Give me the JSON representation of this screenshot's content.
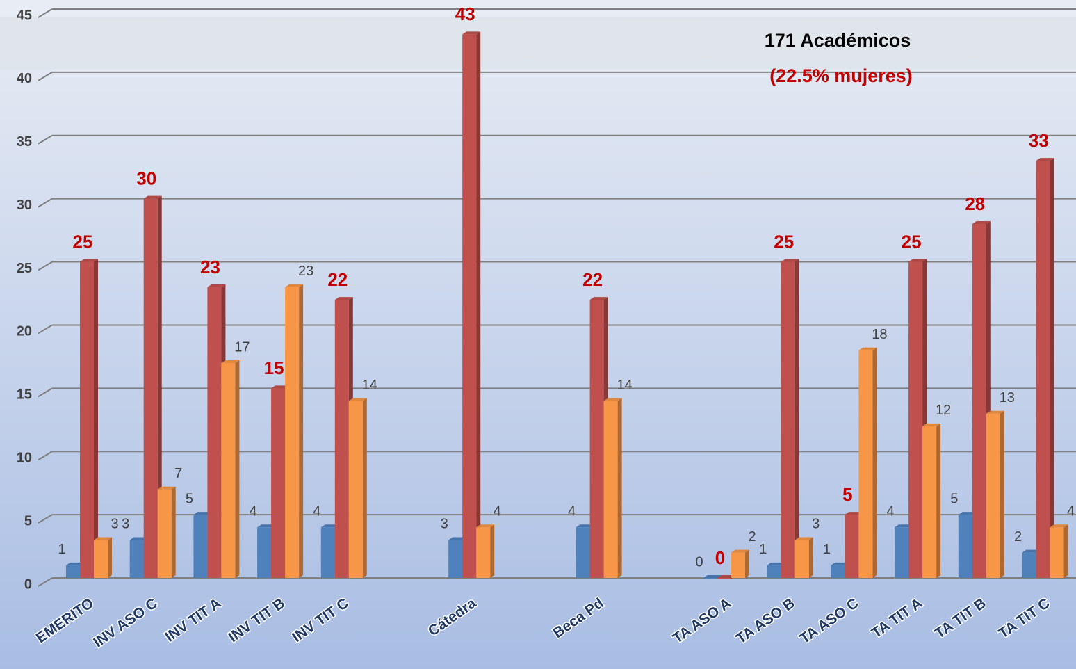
{
  "chart_data": {
    "type": "bar",
    "annotations": [
      "171 Académicos",
      "(22.5% mujeres)"
    ],
    "categories": [
      "EMERITO",
      "INV ASO C",
      "INV TIT A",
      "INV TIT B",
      "INV TIT C",
      null,
      "Cátedra",
      null,
      "Beca Pd",
      null,
      "TA ASO A",
      "TA ASO B",
      "TA ASO C",
      "TA TIT A",
      "TA TIT B",
      "TA TIT C"
    ],
    "series": [
      {
        "color": "#4f81bd",
        "values": [
          1,
          3,
          5,
          4,
          4,
          null,
          3,
          null,
          4,
          null,
          0,
          1,
          1,
          4,
          5,
          2
        ]
      },
      {
        "color": "#c0504d",
        "values": [
          25,
          30,
          23,
          15,
          22,
          null,
          43,
          null,
          22,
          null,
          0,
          25,
          5,
          25,
          28,
          33
        ]
      },
      {
        "color": "#f79646",
        "values": [
          3,
          7,
          17,
          23,
          14,
          null,
          4,
          null,
          14,
          null,
          2,
          3,
          18,
          12,
          13,
          4
        ]
      }
    ],
    "ylim": [
      0,
      45
    ],
    "yticks": [
      0,
      5,
      10,
      15,
      20,
      25,
      30,
      35,
      40,
      45
    ],
    "grid": true
  }
}
